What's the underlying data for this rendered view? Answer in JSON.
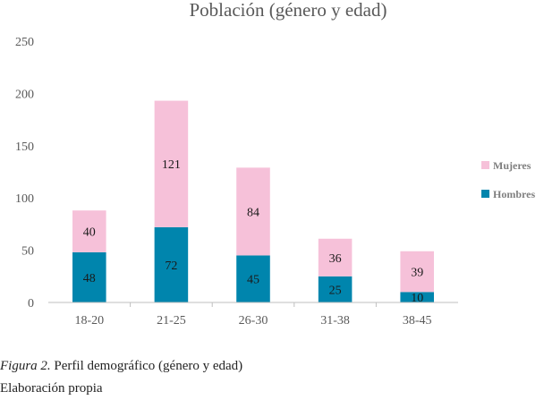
{
  "chart_data": {
    "type": "bar",
    "stacked": true,
    "title": "Población (género y edad)",
    "xlabel": "",
    "ylabel": "",
    "categories": [
      "18-20",
      "21-25",
      "26-30",
      "31-38",
      "38-45"
    ],
    "series": [
      {
        "name": "Hombres",
        "values": [
          48,
          72,
          45,
          25,
          10
        ],
        "color": "#0085AD"
      },
      {
        "name": "Mujeres",
        "values": [
          40,
          121,
          84,
          36,
          39
        ],
        "color": "#F6C1D9"
      }
    ],
    "ylim": [
      0,
      250
    ],
    "yticks": [
      "0",
      "50",
      "100",
      "150",
      "200",
      "250"
    ],
    "grid": false,
    "legend": "right"
  },
  "caption": {
    "figure_label": "Figura 2.",
    "figure_text": " Perfil demográfico (género y edad)",
    "source": "Elaboración propia"
  },
  "colors": {
    "axis": "#BFBFBF",
    "tick_text": "#595959",
    "title_text": "#595959",
    "value_text": "#1a1a1a"
  }
}
